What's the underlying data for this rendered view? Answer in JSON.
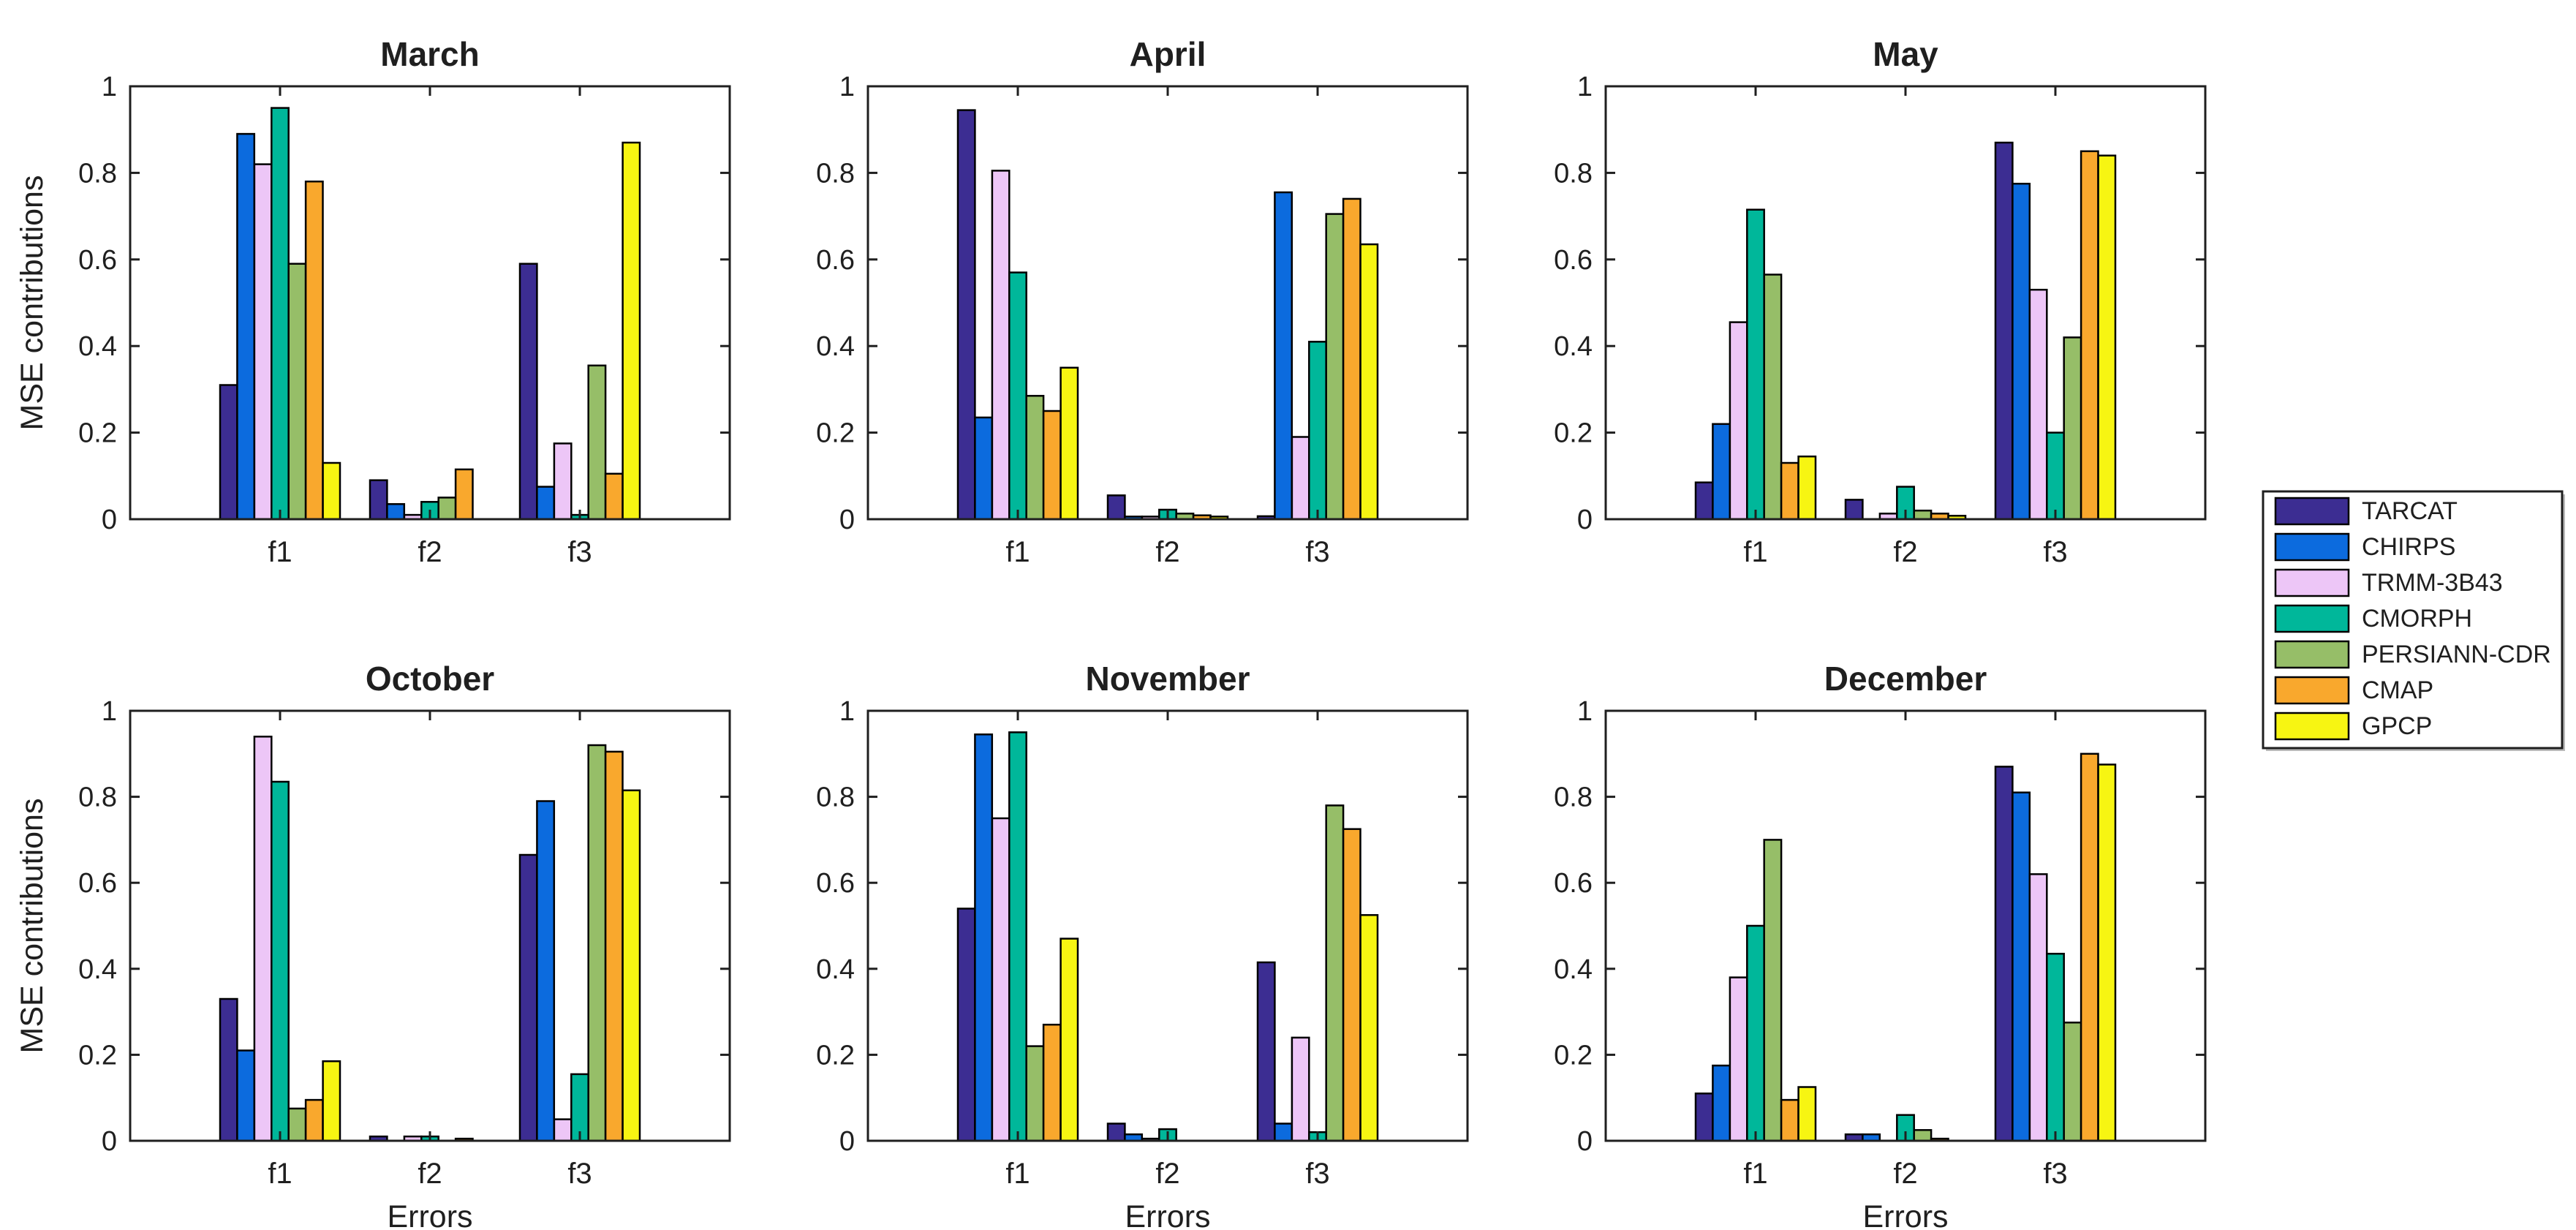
{
  "figure": {
    "background": "#ffffff",
    "axis_color": "#1f1f1f",
    "bar_edge_color": "#000000",
    "ylabel": "MSE contributions",
    "xlabel": "Errors"
  },
  "legend": {
    "position": "right-middle",
    "entries": [
      {
        "label": "TARCAT",
        "color": "#3C2D92"
      },
      {
        "label": "CHIRPS",
        "color": "#0C6BDE"
      },
      {
        "label": "TRMM-3B43",
        "color": "#EDC6F7"
      },
      {
        "label": "CMORPH",
        "color": "#00B79A"
      },
      {
        "label": "PERSIANN-CDR",
        "color": "#96BE68"
      },
      {
        "label": "CMAP",
        "color": "#F9A82D"
      },
      {
        "label": "GPCP",
        "color": "#F7F512"
      }
    ]
  },
  "chart_data": [
    {
      "type": "bar",
      "title": "March",
      "categories": [
        "f1",
        "f2",
        "f3"
      ],
      "xlabel": "",
      "ylabel": "MSE contributions",
      "ylim": [
        0,
        1
      ],
      "yticks": [
        0,
        0.2,
        0.4,
        0.6,
        0.8,
        1
      ],
      "grid": false,
      "series": [
        {
          "name": "TARCAT",
          "values": [
            0.31,
            0.09,
            0.59
          ]
        },
        {
          "name": "CHIRPS",
          "values": [
            0.89,
            0.035,
            0.075
          ]
        },
        {
          "name": "TRMM-3B43",
          "values": [
            0.82,
            0.01,
            0.175
          ]
        },
        {
          "name": "CMORPH",
          "values": [
            0.95,
            0.04,
            0.01
          ]
        },
        {
          "name": "PERSIANN-CDR",
          "values": [
            0.59,
            0.05,
            0.355
          ]
        },
        {
          "name": "CMAP",
          "values": [
            0.78,
            0.115,
            0.105
          ]
        },
        {
          "name": "GPCP",
          "values": [
            0.13,
            0.0,
            0.87
          ]
        }
      ]
    },
    {
      "type": "bar",
      "title": "April",
      "categories": [
        "f1",
        "f2",
        "f3"
      ],
      "xlabel": "",
      "ylabel": "",
      "ylim": [
        0,
        1
      ],
      "yticks": [
        0,
        0.2,
        0.4,
        0.6,
        0.8,
        1
      ],
      "grid": false,
      "series": [
        {
          "name": "TARCAT",
          "values": [
            0.945,
            0.055,
            0.007
          ]
        },
        {
          "name": "CHIRPS",
          "values": [
            0.235,
            0.006,
            0.755
          ]
        },
        {
          "name": "TRMM-3B43",
          "values": [
            0.805,
            0.006,
            0.19
          ]
        },
        {
          "name": "CMORPH",
          "values": [
            0.57,
            0.022,
            0.41
          ]
        },
        {
          "name": "PERSIANN-CDR",
          "values": [
            0.285,
            0.013,
            0.705
          ]
        },
        {
          "name": "CMAP",
          "values": [
            0.25,
            0.009,
            0.74
          ]
        },
        {
          "name": "GPCP",
          "values": [
            0.35,
            0.006,
            0.635
          ]
        }
      ]
    },
    {
      "type": "bar",
      "title": "May",
      "categories": [
        "f1",
        "f2",
        "f3"
      ],
      "xlabel": "",
      "ylabel": "",
      "ylim": [
        0,
        1
      ],
      "yticks": [
        0,
        0.2,
        0.4,
        0.6,
        0.8,
        1
      ],
      "grid": false,
      "series": [
        {
          "name": "TARCAT",
          "values": [
            0.085,
            0.045,
            0.87
          ]
        },
        {
          "name": "CHIRPS",
          "values": [
            0.22,
            0.0,
            0.775
          ]
        },
        {
          "name": "TRMM-3B43",
          "values": [
            0.455,
            0.013,
            0.53
          ]
        },
        {
          "name": "CMORPH",
          "values": [
            0.715,
            0.075,
            0.2
          ]
        },
        {
          "name": "PERSIANN-CDR",
          "values": [
            0.565,
            0.02,
            0.42
          ]
        },
        {
          "name": "CMAP",
          "values": [
            0.13,
            0.013,
            0.85
          ]
        },
        {
          "name": "GPCP",
          "values": [
            0.145,
            0.008,
            0.84
          ]
        }
      ]
    },
    {
      "type": "bar",
      "title": "October",
      "categories": [
        "f1",
        "f2",
        "f3"
      ],
      "xlabel": "Errors",
      "ylabel": "MSE contributions",
      "ylim": [
        0,
        1
      ],
      "yticks": [
        0,
        0.2,
        0.4,
        0.6,
        0.8,
        1
      ],
      "grid": false,
      "series": [
        {
          "name": "TARCAT",
          "values": [
            0.33,
            0.01,
            0.665
          ]
        },
        {
          "name": "CHIRPS",
          "values": [
            0.21,
            0.0,
            0.79
          ]
        },
        {
          "name": "TRMM-3B43",
          "values": [
            0.94,
            0.01,
            0.05
          ]
        },
        {
          "name": "CMORPH",
          "values": [
            0.835,
            0.01,
            0.155
          ]
        },
        {
          "name": "PERSIANN-CDR",
          "values": [
            0.075,
            0.0,
            0.92
          ]
        },
        {
          "name": "CMAP",
          "values": [
            0.095,
            0.005,
            0.905
          ]
        },
        {
          "name": "GPCP",
          "values": [
            0.185,
            0.0,
            0.815
          ]
        }
      ]
    },
    {
      "type": "bar",
      "title": "November",
      "categories": [
        "f1",
        "f2",
        "f3"
      ],
      "xlabel": "Errors",
      "ylabel": "",
      "ylim": [
        0,
        1
      ],
      "yticks": [
        0,
        0.2,
        0.4,
        0.6,
        0.8,
        1
      ],
      "grid": false,
      "series": [
        {
          "name": "TARCAT",
          "values": [
            0.54,
            0.04,
            0.415
          ]
        },
        {
          "name": "CHIRPS",
          "values": [
            0.945,
            0.015,
            0.04
          ]
        },
        {
          "name": "TRMM-3B43",
          "values": [
            0.75,
            0.005,
            0.24
          ]
        },
        {
          "name": "CMORPH",
          "values": [
            0.95,
            0.027,
            0.02
          ]
        },
        {
          "name": "PERSIANN-CDR",
          "values": [
            0.22,
            0.0,
            0.78
          ]
        },
        {
          "name": "CMAP",
          "values": [
            0.27,
            0.0,
            0.725
          ]
        },
        {
          "name": "GPCP",
          "values": [
            0.47,
            0.0,
            0.525
          ]
        }
      ]
    },
    {
      "type": "bar",
      "title": "December",
      "categories": [
        "f1",
        "f2",
        "f3"
      ],
      "xlabel": "Errors",
      "ylabel": "",
      "ylim": [
        0,
        1
      ],
      "yticks": [
        0,
        0.2,
        0.4,
        0.6,
        0.8,
        1
      ],
      "grid": false,
      "series": [
        {
          "name": "TARCAT",
          "values": [
            0.11,
            0.015,
            0.87
          ]
        },
        {
          "name": "CHIRPS",
          "values": [
            0.175,
            0.015,
            0.81
          ]
        },
        {
          "name": "TRMM-3B43",
          "values": [
            0.38,
            0.0,
            0.62
          ]
        },
        {
          "name": "CMORPH",
          "values": [
            0.5,
            0.06,
            0.435
          ]
        },
        {
          "name": "PERSIANN-CDR",
          "values": [
            0.7,
            0.025,
            0.275
          ]
        },
        {
          "name": "CMAP",
          "values": [
            0.095,
            0.005,
            0.9
          ]
        },
        {
          "name": "GPCP",
          "values": [
            0.125,
            0.0,
            0.875
          ]
        }
      ]
    }
  ]
}
